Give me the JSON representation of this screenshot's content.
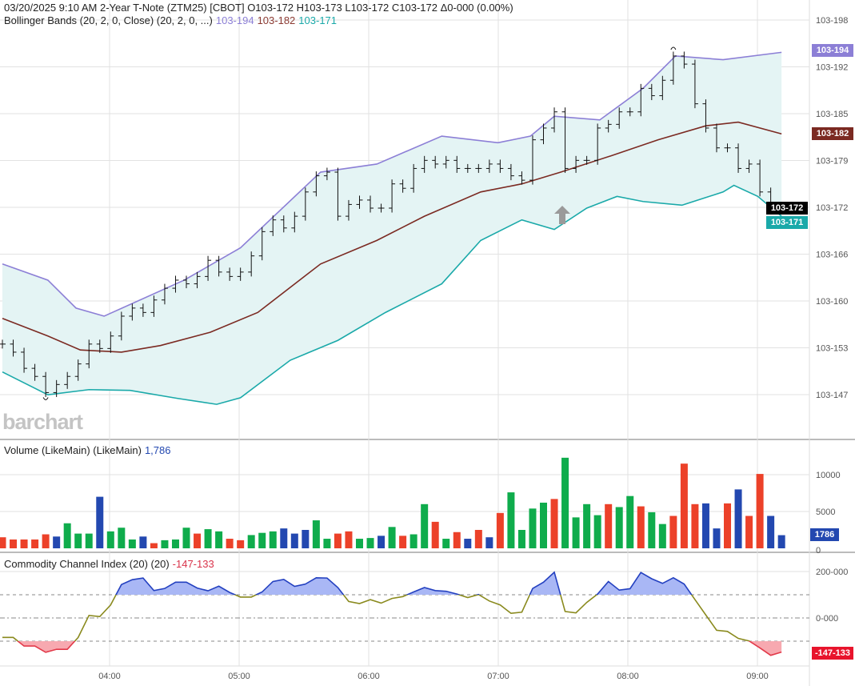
{
  "header": {
    "line1": "03/20/2025  9:10 AM 2-Year T-Note (ZTM25) [CBOT]  O103-172  H103-173  L103-172  C103-172  Δ0-000 (0.00%)",
    "bb_label": "Bollinger Bands (20, 2, 0, Close)  (20, 2, 0, ...)",
    "bb_upper": "103-194",
    "bb_middle": "103-182",
    "bb_lower": "103-171"
  },
  "watermark": "barchart",
  "volume": {
    "label": "Volume (LikeMain)  (LikeMain)",
    "value": "1,786",
    "tag": "1786"
  },
  "cci": {
    "label": "Commodity Channel Index (20)  (20)",
    "value": "-147-133",
    "tag": "-147-133"
  },
  "price_tags": {
    "upper": "103-194",
    "middle": "103-182",
    "last": "103-172",
    "lower": "103-171"
  },
  "colors": {
    "upper": "#8c7fd6",
    "middle": "#7b2a22",
    "lower": "#1aa9a9",
    "band_fill": "#e4f4f4",
    "up": "#0fac4c",
    "down": "#ec4129",
    "unchanged": "#2348b0",
    "cci_high": "#2340c0",
    "cci_low": "#e23a4a",
    "cci_mid": "#8a8a1e"
  },
  "chart_data": [
    {
      "type": "ohlc-bars",
      "price_axis": {
        "ticks": [
          "103-198",
          "103-192",
          "103-185",
          "103-179",
          "103-172",
          "103-166",
          "103-160",
          "103-153",
          "103-147"
        ],
        "tick_values": [
          198,
          192,
          185,
          179,
          172,
          166,
          160,
          153,
          147
        ]
      },
      "time_axis": {
        "ticks": [
          "04:00",
          "05:00",
          "06:00",
          "07:00",
          "08:00",
          "09:00"
        ]
      },
      "first_bar_time": "03:10",
      "interval_minutes": 5,
      "close": [
        153.9,
        152.8,
        150.6,
        149.5,
        147.3,
        148.4,
        149.5,
        151.2,
        153.9,
        153.3,
        155.0,
        157.7,
        158.8,
        158.2,
        159.9,
        161.5,
        162.6,
        162.1,
        163.1,
        165.3,
        163.7,
        163.1,
        163.7,
        165.9,
        169.2,
        170.8,
        169.7,
        171.3,
        174.6,
        176.8,
        177.3,
        171.3,
        172.9,
        173.5,
        172.4,
        172.4,
        175.7,
        175.1,
        177.8,
        178.9,
        178.4,
        178.9,
        177.8,
        177.8,
        177.8,
        178.4,
        177.8,
        176.8,
        176.2,
        181.7,
        183.3,
        185.5,
        177.8,
        178.9,
        178.9,
        183.3,
        183.8,
        185.5,
        185.5,
        188.7,
        187.7,
        189.8,
        193.1,
        192.0,
        186.6,
        183.3,
        180.6,
        180.6,
        177.8,
        178.4,
        174.6,
        172.4,
        172.2
      ],
      "bollinger": {
        "upper": [
          [
            "03:10",
            164.8
          ],
          [
            "03:31",
            162.6
          ],
          [
            "03:44",
            158.8
          ],
          [
            "03:57",
            157.7
          ],
          [
            "04:34",
            162.6
          ],
          [
            "05:00",
            167.0
          ],
          [
            "05:37",
            177.3
          ],
          [
            "06:03",
            178.4
          ],
          [
            "06:33",
            182.2
          ],
          [
            "06:59",
            181.3
          ],
          [
            "07:14",
            182.2
          ],
          [
            "07:25",
            184.9
          ],
          [
            "07:46",
            184.4
          ],
          [
            "08:06",
            188.7
          ],
          [
            "08:21",
            193.1
          ],
          [
            "08:43",
            192.6
          ],
          [
            "09:10",
            193.6
          ]
        ],
        "middle": [
          [
            "03:10",
            157.4
          ],
          [
            "03:31",
            155.0
          ],
          [
            "03:46",
            153.1
          ],
          [
            "04:05",
            152.8
          ],
          [
            "04:23",
            153.7
          ],
          [
            "04:46",
            155.5
          ],
          [
            "05:08",
            158.2
          ],
          [
            "05:37",
            164.8
          ],
          [
            "06:03",
            168.0
          ],
          [
            "06:25",
            171.3
          ],
          [
            "06:51",
            174.6
          ],
          [
            "07:10",
            175.7
          ],
          [
            "07:28",
            177.3
          ],
          [
            "07:51",
            179.5
          ],
          [
            "08:13",
            181.7
          ],
          [
            "08:35",
            183.6
          ],
          [
            "08:50",
            184.1
          ],
          [
            "09:10",
            182.5
          ]
        ],
        "lower": [
          [
            "03:10",
            150.1
          ],
          [
            "03:31",
            147.0
          ],
          [
            "03:50",
            147.7
          ],
          [
            "04:09",
            147.6
          ],
          [
            "04:31",
            146.5
          ],
          [
            "04:49",
            145.7
          ],
          [
            "05:00",
            146.6
          ],
          [
            "05:23",
            151.7
          ],
          [
            "05:45",
            154.4
          ],
          [
            "06:07",
            158.2
          ],
          [
            "06:33",
            162.1
          ],
          [
            "06:51",
            168.0
          ],
          [
            "07:10",
            170.8
          ],
          [
            "07:25",
            169.5
          ],
          [
            "07:40",
            172.4
          ],
          [
            "07:54",
            174.0
          ],
          [
            "08:06",
            173.3
          ],
          [
            "08:24",
            172.8
          ],
          [
            "08:43",
            174.6
          ],
          [
            "08:48",
            175.5
          ],
          [
            "08:59",
            174.0
          ],
          [
            "09:10",
            171.3
          ]
        ]
      }
    },
    {
      "type": "bar",
      "y_ticks": [
        "10000",
        "5000",
        "0"
      ],
      "y_tick_values": [
        10000,
        5000,
        0
      ],
      "values": [
        1500,
        1200,
        1200,
        1200,
        1900,
        1600,
        3400,
        2000,
        2000,
        7000,
        2300,
        2800,
        1200,
        1600,
        700,
        1100,
        1200,
        2800,
        2000,
        2600,
        2300,
        1300,
        1100,
        1800,
        2100,
        2300,
        2700,
        2000,
        2500,
        3800,
        1300,
        2000,
        2300,
        1300,
        1400,
        1700,
        2900,
        1700,
        1900,
        6000,
        3600,
        1300,
        2200,
        1300,
        2500,
        1500,
        4800,
        7600,
        2500,
        5400,
        6200,
        6700,
        12300,
        4200,
        6000,
        4500,
        6000,
        5600,
        7100,
        5700,
        4900,
        3300,
        4400,
        11500,
        6000,
        6100,
        2700,
        6100,
        8000,
        4400,
        10100,
        4400,
        1786
      ],
      "direction": "ddddd nuuun uuund uuudu uddu uunnnu udduunudu udud ndnduuuuduuuudu uduudddnndnddn"
    },
    {
      "type": "line",
      "y_ticks": [
        "200-000",
        "0-000"
      ],
      "y_tick_values": [
        200,
        0
      ],
      "levels": [
        100,
        0,
        -100
      ],
      "values": [
        -84,
        -84,
        -121,
        -121,
        -148,
        -135,
        -135,
        -84,
        11,
        6,
        56,
        144,
        165,
        172,
        118,
        127,
        154,
        154,
        129,
        117,
        137,
        110,
        90,
        90,
        112,
        157,
        166,
        136,
        146,
        173,
        172,
        131,
        71,
        62,
        79,
        64,
        84,
        92,
        112,
        131,
        118,
        115,
        103,
        88,
        101,
        73,
        56,
        20,
        25,
        127,
        154,
        197,
        28,
        22,
        67,
        103,
        157,
        120,
        126,
        196,
        169,
        149,
        173,
        146,
        79,
        13,
        -53,
        -58,
        -88,
        -99,
        -129,
        -161,
        -147
      ]
    }
  ]
}
